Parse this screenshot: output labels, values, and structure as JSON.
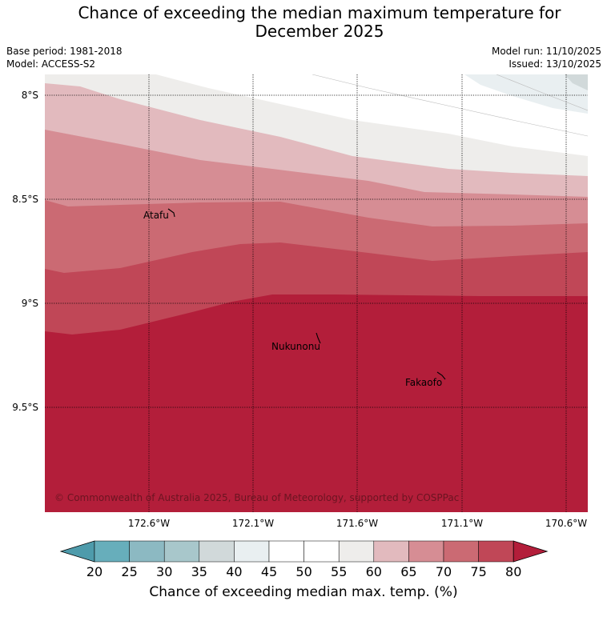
{
  "title": {
    "line1": "Chance of exceeding the median maximum temperature for",
    "line2": "December 2025"
  },
  "meta": {
    "base_period": "Base period: 1981-2018",
    "model": "Model: ACCESS-S2",
    "model_run": "Model run: 11/10/2025",
    "issued": "Issued: 13/10/2025"
  },
  "map": {
    "lat_ticks": [
      "8°S",
      "8.5°S",
      "9°S",
      "9.5°S"
    ],
    "lon_ticks": [
      "172.6°W",
      "172.1°W",
      "171.6°W",
      "171.1°W",
      "170.6°W"
    ],
    "places": [
      "Atafu",
      "Nukunonu",
      "Fakaofo"
    ],
    "copyright": "© Commonwealth of Australia 2025, Bureau of Meteorology, supported by COSPPac"
  },
  "colorbar": {
    "ticks": [
      "20",
      "25",
      "30",
      "35",
      "40",
      "45",
      "50",
      "55",
      "60",
      "65",
      "70",
      "75",
      "80"
    ],
    "label": "Chance of exceeding median max. temp. (%)",
    "colors": {
      "below20": "#4e9bab",
      "20-25": "#67aebb",
      "25-30": "#8cb9c2",
      "30-35": "#a8c7cb",
      "35-40": "#d1d9da",
      "40-45": "#e9eff1",
      "45-50": "#ffffff",
      "50-55": "#ffffff",
      "55-60": "#eeedeb",
      "60-65": "#e2babe",
      "65-70": "#d68d94",
      "70-75": "#cb6a73",
      "75-80": "#c04757",
      "above80": "#b31e3a"
    }
  }
}
